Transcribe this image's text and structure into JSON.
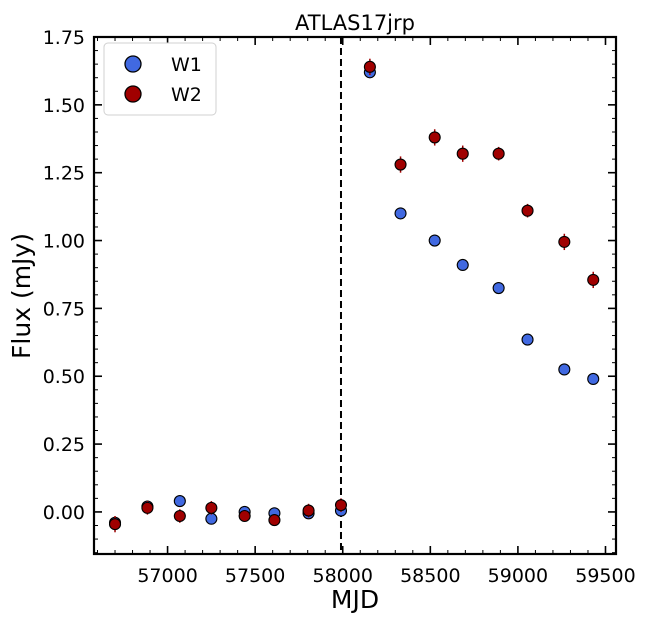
{
  "chart_data": {
    "type": "scatter",
    "title": "ATLAS17jrp",
    "xlabel": "MJD",
    "ylabel": "Flux (mJy)",
    "xlim": [
      56580,
      59560
    ],
    "ylim": [
      -0.155,
      1.75
    ],
    "xticks": [
      57000,
      57500,
      58000,
      58500,
      59000,
      59500
    ],
    "yticks": [
      0.0,
      0.25,
      0.5,
      0.75,
      1.0,
      1.25,
      1.5,
      1.75
    ],
    "xtick_labels": [
      "57000",
      "57500",
      "58000",
      "58500",
      "59000",
      "59500"
    ],
    "ytick_labels": [
      "0.00",
      "0.25",
      "0.50",
      "0.75",
      "1.00",
      "1.25",
      "1.50",
      "1.75"
    ],
    "vline": {
      "x": 57990,
      "style": "dashed",
      "color": "#000000"
    },
    "legend": {
      "position": "top-left",
      "entries": [
        "W1",
        "W2"
      ]
    },
    "series": [
      {
        "name": "W1",
        "color": "#4169e1",
        "x": [
          56700,
          56885,
          57070,
          57250,
          57440,
          57610,
          57805,
          57990,
          58155,
          58330,
          58525,
          58685,
          58890,
          59055,
          59265,
          59430
        ],
        "y": [
          -0.04,
          0.02,
          0.04,
          -0.025,
          0.0,
          -0.005,
          -0.005,
          0.005,
          1.62,
          1.1,
          1.0,
          0.91,
          0.825,
          0.635,
          0.525,
          0.49
        ],
        "err": [
          0.01,
          0.01,
          0.01,
          0.01,
          0.01,
          0.01,
          0.01,
          0.01,
          0.01,
          0.01,
          0.01,
          0.01,
          0.01,
          0.01,
          0.01,
          0.01
        ]
      },
      {
        "name": "W2",
        "color": "#a00000",
        "x": [
          56700,
          56885,
          57070,
          57250,
          57440,
          57610,
          57805,
          57990,
          58155,
          58330,
          58525,
          58685,
          58890,
          59055,
          59265,
          59430
        ],
        "y": [
          -0.045,
          0.015,
          -0.015,
          0.015,
          -0.015,
          -0.03,
          0.005,
          0.025,
          1.64,
          1.28,
          1.38,
          1.32,
          1.32,
          1.11,
          0.995,
          0.855
        ],
        "err": [
          0.03,
          0.025,
          0.025,
          0.025,
          0.02,
          0.02,
          0.025,
          0.025,
          0.03,
          0.03,
          0.03,
          0.03,
          0.025,
          0.025,
          0.03,
          0.03
        ]
      }
    ]
  }
}
